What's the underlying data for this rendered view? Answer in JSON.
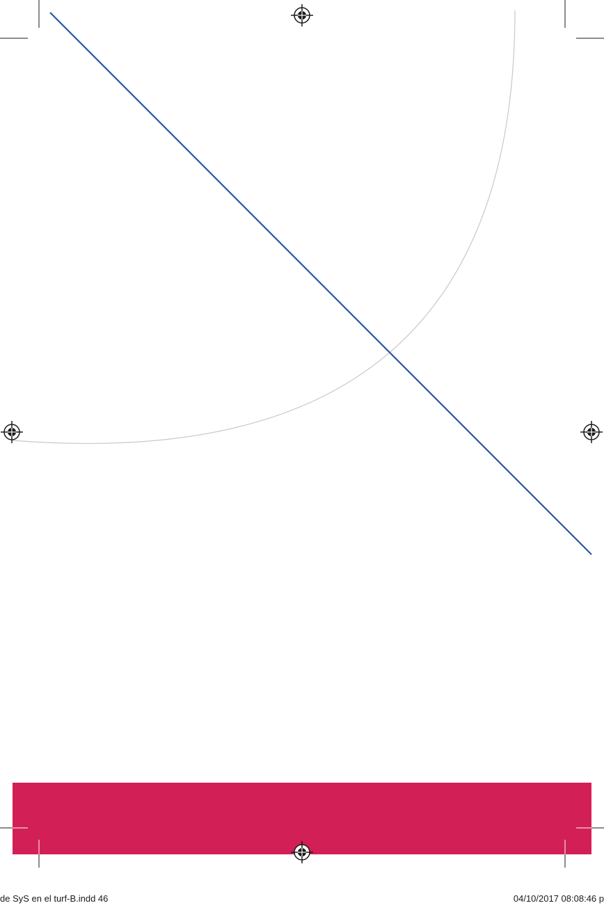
{
  "colors": {
    "page": "#ffffff",
    "diagonal_line": "#2a55a6",
    "arc": "#c8c8c8",
    "footer_band": "#d21f55",
    "marks": "#1a1a1a"
  },
  "slug": {
    "file_info": "de SyS en el turf-B.indd   46",
    "timestamp": "04/10/2017   08:08:46 p"
  }
}
